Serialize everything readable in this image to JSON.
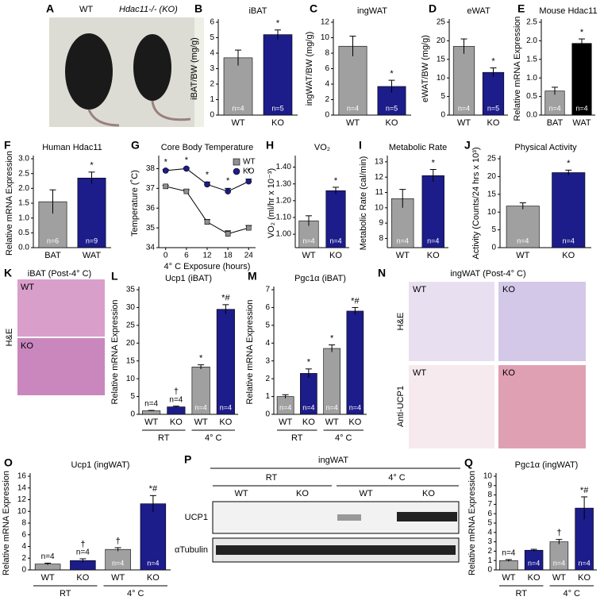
{
  "chart_data": [
    {
      "type": "bar",
      "panel": "B",
      "title": "iBAT",
      "ylabel": "iBAT/BW (mg/g)",
      "categories": [
        "WT",
        "KO"
      ],
      "values": [
        3.7,
        5.2
      ],
      "errors": [
        0.5,
        0.3
      ],
      "colors": [
        "#a0a0a0",
        "#1c1c8a"
      ],
      "n_labels": [
        "n=4",
        "n=5"
      ],
      "markers": [
        null,
        "*"
      ],
      "ylim": [
        0,
        6
      ],
      "yticks": [
        0,
        1,
        2,
        3,
        4,
        5,
        6
      ]
    },
    {
      "type": "bar",
      "panel": "C",
      "title": "ingWAT",
      "ylabel": "ingWAT/BW (mg/g)",
      "categories": [
        "WT",
        "KO"
      ],
      "values": [
        8.9,
        3.7
      ],
      "errors": [
        1.3,
        0.8
      ],
      "colors": [
        "#a0a0a0",
        "#1c1c8a"
      ],
      "n_labels": [
        "n=4",
        "n=5"
      ],
      "markers": [
        null,
        "*"
      ],
      "ylim": [
        0,
        12
      ],
      "yticks": [
        0,
        2,
        4,
        6,
        8,
        10,
        12
      ]
    },
    {
      "type": "bar",
      "panel": "D",
      "title": "eWAT",
      "ylabel": "eWAT/BW (mg/g)",
      "categories": [
        "WT",
        "KO"
      ],
      "values": [
        18.5,
        11.5
      ],
      "errors": [
        2,
        1.2
      ],
      "colors": [
        "#a0a0a0",
        "#1c1c8a"
      ],
      "n_labels": [
        "n=4",
        "n=5"
      ],
      "markers": [
        null,
        "*"
      ],
      "ylim": [
        0,
        25
      ],
      "yticks": [
        0,
        5,
        10,
        15,
        20,
        25
      ]
    },
    {
      "type": "bar",
      "panel": "E",
      "title": "Mouse Hdac11",
      "ylabel": "Relative mRNA Expression",
      "categories": [
        "BAT",
        "WAT"
      ],
      "values": [
        0.65,
        1.93
      ],
      "errors": [
        0.1,
        0.12
      ],
      "colors": [
        "#a0a0a0",
        "#000000"
      ],
      "n_labels": [
        "n=4",
        "n=4"
      ],
      "markers": [
        null,
        "*"
      ],
      "ylim": [
        0,
        2.5
      ],
      "yticks": [
        {
          "value": 0,
          "label": "0.0"
        },
        {
          "value": 0.5,
          "label": "0.5"
        },
        {
          "value": 1,
          "label": "1.0"
        },
        {
          "value": 1.5,
          "label": "1.5"
        },
        {
          "value": 2,
          "label": "2.0"
        },
        {
          "value": 2.5,
          "label": "2.5"
        }
      ]
    },
    {
      "type": "bar",
      "panel": "F",
      "title": "Human Hdac11",
      "ylabel": "Relative mRNA Expression",
      "categories": [
        "BAT",
        "WAT"
      ],
      "values": [
        1.55,
        2.35
      ],
      "errors": [
        0.4,
        0.2
      ],
      "colors": [
        "#a0a0a0",
        "#1c1c8a"
      ],
      "n_labels": [
        "n=6",
        "n=9"
      ],
      "markers": [
        null,
        "*"
      ],
      "ylim": [
        0,
        3
      ],
      "yticks": [
        {
          "value": 0,
          "label": "0.0"
        },
        {
          "value": 0.5,
          "label": "0.5"
        },
        {
          "value": 1,
          "label": "1.0"
        },
        {
          "value": 1.5,
          "label": "1.5"
        },
        {
          "value": 2,
          "label": "2.0"
        },
        {
          "value": 2.5,
          "label": "2.5"
        },
        {
          "value": 3,
          "label": "3.0"
        }
      ]
    },
    {
      "type": "line",
      "panel": "G",
      "title": "Core Body Temperature",
      "xlabel": "4° C Exposure (hours)",
      "ylabel": "Temperature (˚C)",
      "x": [
        0,
        6,
        12,
        18,
        24
      ],
      "xlim": [
        -2,
        26
      ],
      "xticks": [
        0,
        6,
        12,
        18,
        24
      ],
      "ylim": [
        34,
        38.5
      ],
      "yticks": [
        34,
        35,
        36,
        37,
        38
      ],
      "series": [
        {
          "name": "WT",
          "color": "#909090",
          "marker": "square",
          "values": [
            37.1,
            36.85,
            35.3,
            34.7,
            35.0
          ],
          "errors": [
            0.05,
            0.08,
            0.12,
            0.15,
            0.12
          ]
        },
        {
          "name": "KO",
          "color": "#1c1c8a",
          "marker": "circle",
          "values": [
            37.9,
            38.0,
            37.2,
            36.85,
            37.35
          ],
          "errors": [
            0.06,
            0.05,
            0.12,
            0.15,
            0.12
          ],
          "markers": [
            "*",
            "*",
            "*",
            "*",
            "*"
          ]
        }
      ]
    },
    {
      "type": "bar",
      "panel": "H",
      "title": "VO₂",
      "ylabel": "VO₂ (ml/hr x 10⁻³)",
      "categories": [
        "WT",
        "KO"
      ],
      "values": [
        1.08,
        1.26
      ],
      "errors": [
        0.03,
        0.02
      ],
      "colors": [
        "#a0a0a0",
        "#1c1c8a"
      ],
      "n_labels": [
        "n=4",
        "n=4"
      ],
      "markers": [
        null,
        "*"
      ],
      "ylim": [
        0.92,
        1.45
      ],
      "yticks": [
        {
          "value": 1,
          "label": "1.00"
        },
        {
          "value": 1.1,
          "label": "1.10"
        },
        {
          "value": 1.2,
          "label": "1.20"
        },
        {
          "value": 1.3,
          "label": "1.30"
        },
        {
          "value": 1.4,
          "label": "1.40"
        }
      ]
    },
    {
      "type": "bar",
      "panel": "I",
      "title": "Metabolic Rate",
      "ylabel": "Metabolic Rate (cal/min)",
      "categories": [
        "WT",
        "KO"
      ],
      "values": [
        10.6,
        12.1
      ],
      "errors": [
        0.6,
        0.4
      ],
      "colors": [
        "#a0a0a0",
        "#1c1c8a"
      ],
      "n_labels": [
        "n=4",
        "n=4"
      ],
      "markers": [
        null,
        "*"
      ],
      "ylim": [
        7.4,
        13.2
      ],
      "yticks": [
        8,
        9,
        10,
        11,
        12,
        13
      ]
    },
    {
      "type": "bar",
      "panel": "J",
      "title": "Physical Activity",
      "ylabel": "Activity (Counts/24 hrs x 10³)",
      "categories": [
        "WT",
        "KO"
      ],
      "values": [
        11.7,
        21.1
      ],
      "errors": [
        0.9,
        0.7
      ],
      "colors": [
        "#a0a0a0",
        "#1c1c8a"
      ],
      "n_labels": [
        "n=4",
        "n=4"
      ],
      "markers": [
        null,
        "*"
      ],
      "ylim": [
        0,
        25
      ],
      "yticks": [
        0,
        5,
        10,
        15,
        20,
        25
      ]
    },
    {
      "type": "bar",
      "panel": "L",
      "title": "Ucp1 (iBAT)",
      "ylabel": "Relative mRNA Expression",
      "categories": [
        "WT",
        "KO",
        "WT",
        "KO"
      ],
      "groups": [
        "RT",
        "4° C"
      ],
      "values": [
        1.0,
        2.1,
        13.3,
        29.5
      ],
      "errors": [
        0.1,
        0.2,
        0.6,
        1.3
      ],
      "colors": [
        "#a0a0a0",
        "#1c1c8a",
        "#a0a0a0",
        "#1c1c8a"
      ],
      "n_labels": [
        "n=4",
        "n=4",
        "n=4",
        "n=4"
      ],
      "markers": [
        null,
        "†",
        "*",
        "*#"
      ],
      "ylim": [
        0,
        35
      ],
      "yticks": [
        0,
        5,
        10,
        15,
        20,
        25,
        30,
        35
      ]
    },
    {
      "type": "bar",
      "panel": "M",
      "title": "Pgc1α (iBAT)",
      "ylabel": "Relative mRNA Expression",
      "categories": [
        "WT",
        "KO",
        "WT",
        "KO"
      ],
      "groups": [
        "RT",
        "4° C"
      ],
      "values": [
        1.0,
        2.3,
        3.7,
        5.8
      ],
      "errors": [
        0.1,
        0.25,
        0.2,
        0.2
      ],
      "colors": [
        "#a0a0a0",
        "#1c1c8a",
        "#a0a0a0",
        "#1c1c8a"
      ],
      "n_labels": [
        "n=4",
        "n=4",
        "n=4",
        "n=4"
      ],
      "markers": [
        null,
        "*",
        "*",
        "*#"
      ],
      "ylim": [
        0,
        7
      ],
      "yticks": [
        0,
        1,
        2,
        3,
        4,
        5,
        6,
        7
      ]
    },
    {
      "type": "bar",
      "panel": "O",
      "title": "Ucp1 (ingWAT)",
      "ylabel": "Relative mRNA Expression",
      "categories": [
        "WT",
        "KO",
        "WT",
        "KO"
      ],
      "groups": [
        "RT",
        "4° C"
      ],
      "values": [
        1.0,
        1.6,
        3.5,
        11.3
      ],
      "errors": [
        0.15,
        0.3,
        0.3,
        1.4
      ],
      "colors": [
        "#a0a0a0",
        "#1c1c8a",
        "#a0a0a0",
        "#1c1c8a"
      ],
      "n_labels": [
        "n=4",
        "n=4",
        "n=4",
        "n=4"
      ],
      "markers": [
        null,
        "†",
        "†",
        "*#"
      ],
      "ylim": [
        0,
        16
      ],
      "yticks": [
        0,
        2,
        4,
        6,
        8,
        10,
        12,
        14,
        16
      ]
    },
    {
      "type": "bar",
      "panel": "Q",
      "title": "Pgc1α (ingWAT)",
      "ylabel": "Relative mRNA Expression",
      "categories": [
        "WT",
        "KO",
        "WT",
        "KO"
      ],
      "groups": [
        "RT",
        "4° C"
      ],
      "values": [
        1.0,
        2.1,
        3.0,
        6.6
      ],
      "errors": [
        0.1,
        0.1,
        0.25,
        1.2
      ],
      "colors": [
        "#a0a0a0",
        "#1c1c8a",
        "#a0a0a0",
        "#1c1c8a"
      ],
      "n_labels": [
        "n=4",
        "n=4",
        "n=4",
        "n=4"
      ],
      "markers": [
        null,
        null,
        "†",
        "*#"
      ],
      "ylim": [
        0,
        10
      ],
      "yticks": [
        0,
        1,
        2,
        3,
        4,
        5,
        6,
        7,
        8,
        9,
        10
      ]
    }
  ],
  "figure": {
    "A": {
      "panel": "A",
      "wt": "WT",
      "ko": "Hdac11-/- (KO)"
    },
    "K": {
      "panel": "K",
      "title": "iBAT (Post-4° C)",
      "stain": "H&E",
      "top": "WT",
      "bottom": "KO"
    },
    "N": {
      "panel": "N",
      "title": "ingWAT (Post-4° C)",
      "stain1": "H&E",
      "stain2": "Anti-UCP1",
      "labels": [
        "WT",
        "KO",
        "WT",
        "KO"
      ]
    },
    "P": {
      "panel": "P",
      "tissue": "ingWAT",
      "conditions": [
        "RT",
        "4° C"
      ],
      "genotypes": [
        "WT",
        "KO",
        "WT",
        "KO"
      ],
      "rows": [
        "UCP1",
        "αTubulin"
      ]
    }
  }
}
